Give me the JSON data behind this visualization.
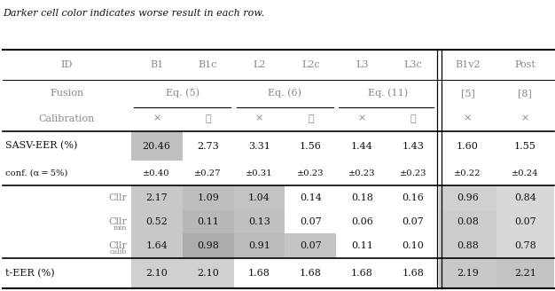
{
  "title": "Darker cell color indicates worse result in each row.",
  "col_widths": [
    1.45,
    0.58,
    0.58,
    0.58,
    0.58,
    0.58,
    0.58,
    0.65,
    0.65
  ],
  "gray_text": "#888888",
  "black_text": "#111111",
  "fontsize": 8.0,
  "small_fs": 7.2,
  "sasv_bg": [
    "#c0c0c0",
    "#ffffff",
    "#ffffff",
    "#ffffff",
    "#ffffff",
    "#ffffff",
    "#ffffff",
    "#ffffff"
  ],
  "cllr_bg": [
    "#c8c8c8",
    "#bebebe",
    "#c4c4c4",
    "#ffffff",
    "#ffffff",
    "#ffffff",
    "#d0d0d0",
    "#d8d8d8"
  ],
  "cllrmin_bg": [
    "#c8c8c8",
    "#b8b8b8",
    "#c0c0c0",
    "#ffffff",
    "#ffffff",
    "#ffffff",
    "#cccccc",
    "#d8d8d8"
  ],
  "cllrcalib_bg": [
    "#c8c8c8",
    "#acacac",
    "#bcbcbc",
    "#c4c4c4",
    "#ffffff",
    "#ffffff",
    "#cccccc",
    "#d8d8d8"
  ],
  "teer_bg": [
    "#d0d0d0",
    "#d0d0d0",
    "#ffffff",
    "#ffffff",
    "#ffffff",
    "#ffffff",
    "#c8c8c8",
    "#c4c4c4"
  ]
}
